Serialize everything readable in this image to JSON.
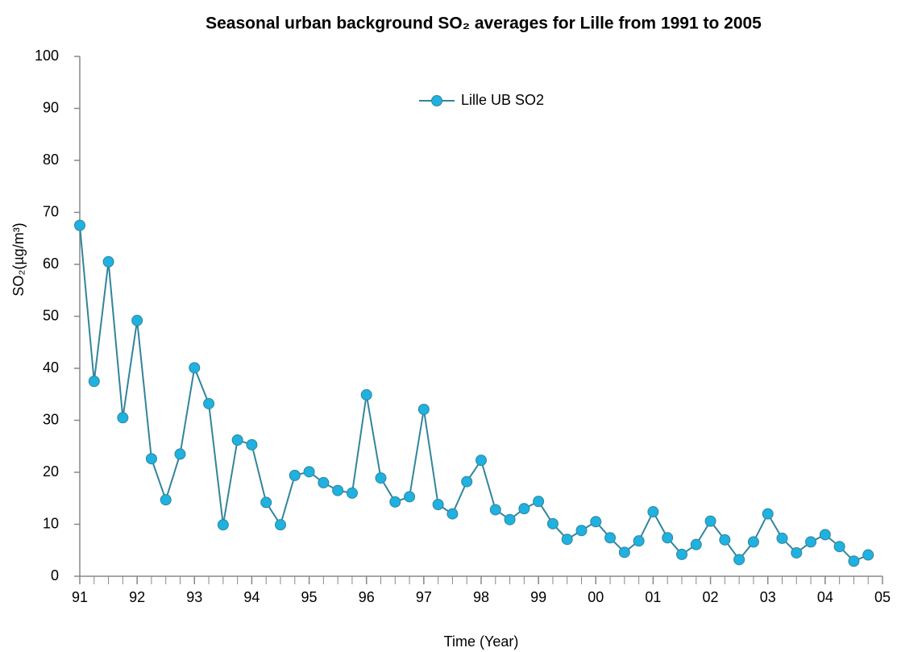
{
  "chart_data": {
    "type": "line",
    "title": "Seasonal urban background SO₂ averages for Lille from 1991 to 2005",
    "x_label": "Time (Year)",
    "y_label": "SO₂(µg/m³)",
    "x": [
      1991,
      1991.25,
      1991.5,
      1991.75,
      1992,
      1992.25,
      1992.5,
      1992.75,
      1993,
      1993.25,
      1993.5,
      1993.75,
      1994,
      1994.25,
      1994.5,
      1994.75,
      1995,
      1995.25,
      1995.5,
      1995.75,
      1996,
      1996.25,
      1996.5,
      1996.75,
      1997,
      1997.25,
      1997.5,
      1997.75,
      1998,
      1998.25,
      1998.5,
      1998.75,
      1999,
      1999.25,
      1999.5,
      1999.75,
      2000,
      2000.25,
      2000.5,
      2000.75,
      2001,
      2001.25,
      2001.5,
      2001.75,
      2002,
      2002.25,
      2002.5,
      2002.75,
      2003,
      2003.25,
      2003.5,
      2003.75,
      2004,
      2004.25,
      2004.5,
      2004.75
    ],
    "series": [
      {
        "name": "Lille UB SO2",
        "color": "#31859c",
        "marker_color": "#1fb1e0",
        "values": [
          67.5,
          37.5,
          60.5,
          30.5,
          49.2,
          22.6,
          14.7,
          23.5,
          40.1,
          33.2,
          9.9,
          26.2,
          25.3,
          14.2,
          9.9,
          19.4,
          20.1,
          18.0,
          16.5,
          16.0,
          34.9,
          18.9,
          14.3,
          15.3,
          32.1,
          13.8,
          12.0,
          18.2,
          22.3,
          12.8,
          10.9,
          13.0,
          14.4,
          10.1,
          7.1,
          8.8,
          10.5,
          7.4,
          4.6,
          6.8,
          12.4,
          7.4,
          4.2,
          6.1,
          10.6,
          7.0,
          3.2,
          6.6,
          12.0,
          7.3,
          4.5,
          6.6,
          8.0,
          5.7,
          2.9,
          4.1
        ]
      }
    ],
    "xlim": [
      1991,
      2005
    ],
    "xticks": [
      {
        "value": 1991,
        "label": "91"
      },
      {
        "value": 1992,
        "label": "92"
      },
      {
        "value": 1993,
        "label": "93"
      },
      {
        "value": 1994,
        "label": "94"
      },
      {
        "value": 1995,
        "label": "95"
      },
      {
        "value": 1996,
        "label": "96"
      },
      {
        "value": 1997,
        "label": "97"
      },
      {
        "value": 1998,
        "label": "98"
      },
      {
        "value": 1999,
        "label": "99"
      },
      {
        "value": 2000,
        "label": "00"
      },
      {
        "value": 2001,
        "label": "01"
      },
      {
        "value": 2002,
        "label": "02"
      },
      {
        "value": 2003,
        "label": "03"
      },
      {
        "value": 2004,
        "label": "04"
      },
      {
        "value": 2005,
        "label": "05"
      }
    ],
    "ylim": [
      0,
      100
    ],
    "yticks": [
      0,
      10,
      20,
      30,
      40,
      50,
      60,
      70,
      80,
      90,
      100
    ],
    "grid": false,
    "legend": "upper center"
  }
}
